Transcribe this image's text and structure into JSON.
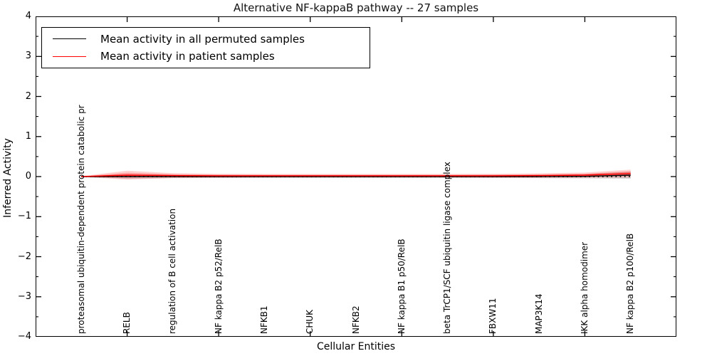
{
  "title": "Alternative NF-kappaB pathway -- 27 samples",
  "chart_data": {
    "type": "line",
    "title": "Alternative NF-kappaB pathway -- 27 samples",
    "xlabel": "Cellular Entities",
    "ylabel": "Inferred Activity",
    "xlim": [
      -1,
      13
    ],
    "ylim": [
      -4,
      4
    ],
    "yticks": [
      -4,
      -3,
      -2,
      -1,
      0,
      1,
      2,
      3,
      4
    ],
    "ytick_labels": [
      "−4",
      "−3",
      "−2",
      "−1",
      "0",
      "1",
      "2",
      "3",
      "4"
    ],
    "ytick_minor_step": 0.5,
    "xtick_indices": [
      1,
      3,
      5,
      7,
      9,
      11
    ],
    "grid": false,
    "legend_position": "upper left",
    "categories": [
      "proteasomal ubiquitin-dependent protein catabolic pr",
      "RELB",
      "regulation of B cell activation",
      "NF kappa B2 p52/RelB",
      "NFKB1",
      "CHUK",
      "NFKB2",
      "NF kappa B1 p50/RelB",
      "beta TrCP1/SCF ubiquitin ligase complex",
      "FBXW11",
      "MAP3K14",
      "IKK alpha homodimer",
      "NF kappa B2 p100/RelB"
    ],
    "zero_line": {
      "value": 0,
      "style": "dotted",
      "color": "#000000"
    },
    "series": [
      {
        "name": "Mean activity in all permuted samples",
        "color": "#000000",
        "style": "solid",
        "values": [
          0,
          0,
          0,
          0,
          0,
          0,
          0,
          0,
          0,
          0,
          0,
          0.005,
          0.035
        ],
        "band_halfwidth": [
          0.005,
          0.055,
          0.04,
          0.035,
          0.035,
          0.035,
          0.035,
          0.035,
          0.035,
          0.035,
          0.04,
          0.05,
          0.09
        ],
        "band_color": "rgba(110,110,110,0.28)"
      },
      {
        "name": "Mean activity in patient samples",
        "color": "#ff0000",
        "style": "solid",
        "values": [
          0,
          0.035,
          0.025,
          0.02,
          0.02,
          0.02,
          0.02,
          0.02,
          0.02,
          0.02,
          0.025,
          0.035,
          0.075
        ],
        "band_halfwidth": [
          0.01,
          0.11,
          0.06,
          0.05,
          0.045,
          0.045,
          0.045,
          0.045,
          0.045,
          0.05,
          0.055,
          0.065,
          0.1
        ],
        "band_color": "rgba(255,30,30,0.20)",
        "band_inner_color": "rgba(255,30,30,0.30)"
      }
    ]
  }
}
